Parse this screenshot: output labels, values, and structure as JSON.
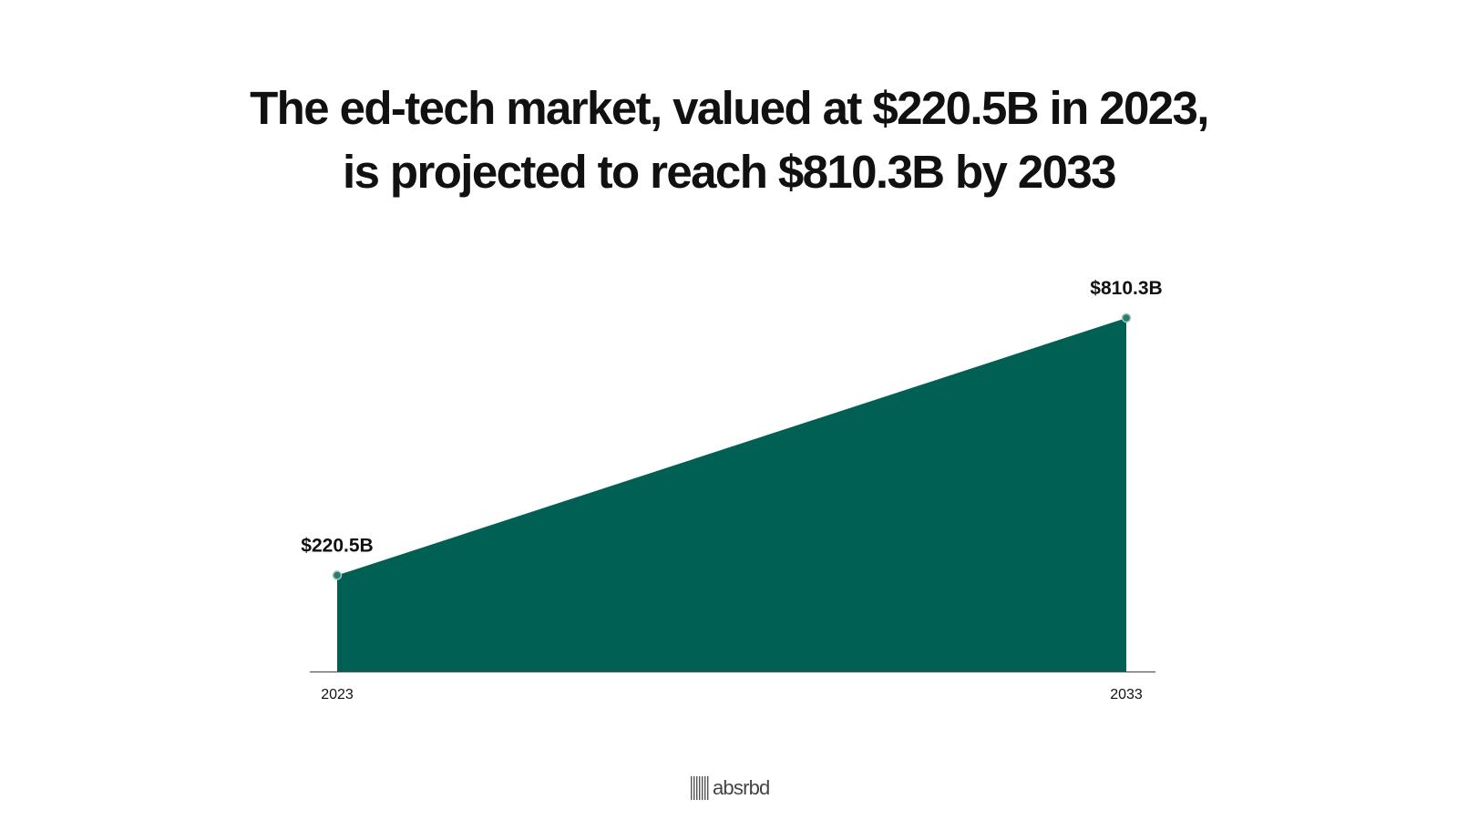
{
  "title_lines": [
    "The ed-tech market, valued at $220.5B in 2023,",
    "is projected to reach $810.3B by 2033"
  ],
  "chart_data": {
    "type": "area",
    "title": "The ed-tech market, valued at $220.5B in 2023, is projected to reach $810.3B by 2033",
    "x": [
      "2023",
      "2033"
    ],
    "values": [
      220.5,
      810.3
    ],
    "data_labels": [
      "$220.5B",
      "$810.3B"
    ],
    "xlabel": "",
    "ylabel": "",
    "ylim": [
      0,
      900
    ],
    "grid": false,
    "legend": "none",
    "fill_color": "#006054",
    "marker_color": "#2e7a6c",
    "axis_color": "#555555"
  },
  "logo": {
    "text": "absrbd"
  }
}
